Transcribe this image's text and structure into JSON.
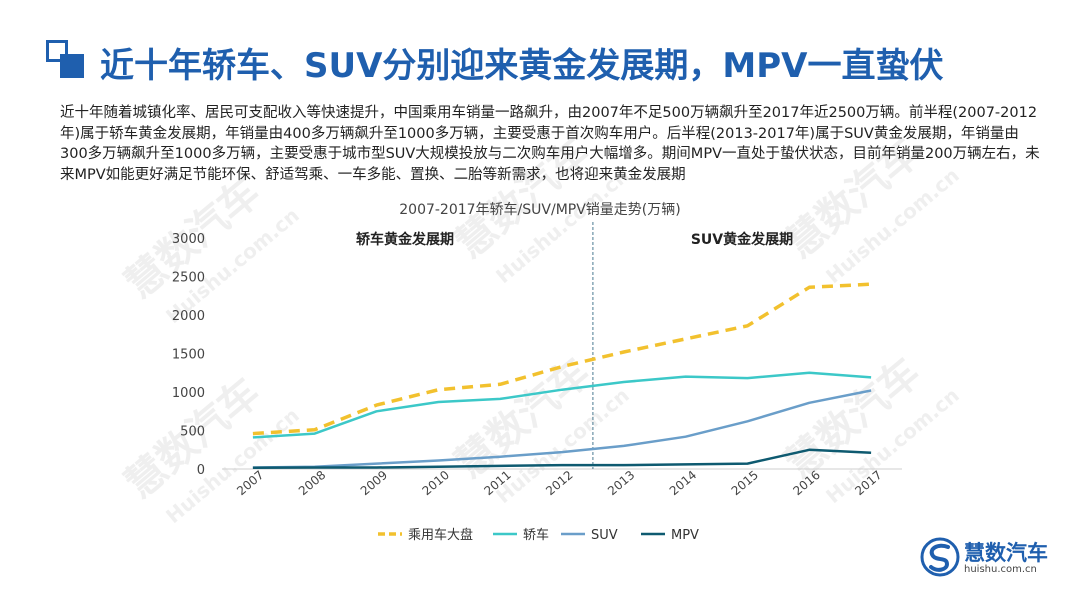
{
  "header": {
    "title": "近十年轿车、SUV分别迎来黄金发展期，MPV一直蛰伏"
  },
  "intro": {
    "text": "近十年随着城镇化率、居民可支配收入等快速提升，中国乘用车销量一路飙升，由2007年不足500万辆飙升至2017年近2500万辆。前半程(2007-2012年)属于轿车黄金发展期，年销量由400多万辆飙升至1000多万辆，主要受惠于首次购车用户。后半程(2013-2017年)属于SUV黄金发展期，年销量由300多万辆飙升至1000多万辆，主要受惠于城市型SUV大规模投放与二次购车用户大幅增多。期间MPV一直处于蛰伏状态，目前年销量200万辆左右，未来MPV如能更好满足节能环保、舒适驾乘、一车多能、置换、二胎等新需求，也将迎来黄金发展期"
  },
  "chart_data": {
    "type": "line",
    "title": "2007-2017年轿车/SUV/MPV销量走势(万辆)",
    "categories": [
      "2007",
      "2008",
      "2009",
      "2010",
      "2011",
      "2012",
      "2013",
      "2014",
      "2015",
      "2016",
      "2017"
    ],
    "ylim": [
      0,
      3000
    ],
    "yticks": [
      0,
      500,
      1000,
      1500,
      2000,
      2500,
      3000
    ],
    "series": [
      {
        "name": "乘用车大盘",
        "color": "#f2c12e",
        "dashed": true,
        "values": [
          460,
          510,
          830,
          1030,
          1100,
          1330,
          1520,
          1690,
          1860,
          2360,
          2400
        ]
      },
      {
        "name": "轿车",
        "color": "#3cc8c8",
        "dashed": false,
        "values": [
          410,
          460,
          750,
          870,
          910,
          1030,
          1130,
          1200,
          1180,
          1250,
          1190
        ]
      },
      {
        "name": "SUV",
        "color": "#6a9ec9",
        "dashed": false,
        "values": [
          20,
          30,
          70,
          110,
          160,
          220,
          300,
          420,
          620,
          860,
          1020
        ]
      },
      {
        "name": "MPV",
        "color": "#0e5a70",
        "dashed": false,
        "values": [
          15,
          20,
          20,
          30,
          40,
          50,
          50,
          60,
          70,
          250,
          210
        ]
      }
    ],
    "annotations": [
      "轿车黄金发展期",
      "SUV黄金发展期"
    ],
    "divider_after": "2012"
  },
  "watermark": {
    "name": "慧数汽车",
    "url": "Huishu.com.cn"
  },
  "logo": {
    "name": "慧数汽车",
    "url": "huishu.com.cn"
  },
  "colors": {
    "accent": "#1f5fae"
  }
}
